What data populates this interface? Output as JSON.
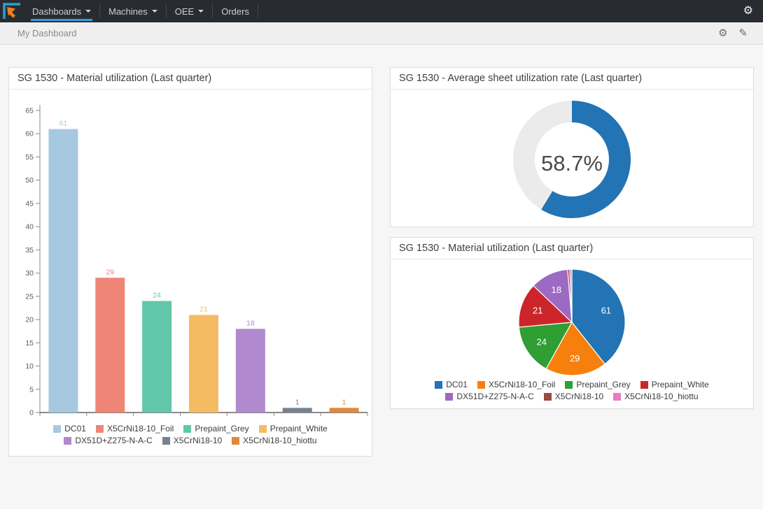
{
  "navbar": {
    "items": [
      {
        "label": "Dashboards",
        "caret": true,
        "active": true
      },
      {
        "label": "Machines",
        "caret": true,
        "active": false
      },
      {
        "label": "OEE",
        "caret": true,
        "active": false
      },
      {
        "label": "Orders",
        "caret": false,
        "active": false
      }
    ],
    "settings_icon": "⚙"
  },
  "toolbar": {
    "title": "My Dashboard",
    "gear_icon": "⚙",
    "edit_icon": "✎"
  },
  "colors": {
    "navbar_bg": "#282c30",
    "accent_blue": "#2d9fd8",
    "brand_orange": "#f07f1a",
    "page_bg": "#f6f6f6"
  },
  "chart_data": [
    {
      "id": "bar",
      "type": "bar",
      "title": "SG 1530 - Material utilization (Last quarter)",
      "categories": [
        "DC01",
        "X5CrNi18-10_Foil",
        "Prepaint_Grey",
        "Prepaint_White",
        "DX51D+Z275-N-A-C",
        "X5CrNi18-10",
        "X5CrNi18-10_hiottu"
      ],
      "values": [
        61,
        29,
        24,
        21,
        18,
        1,
        1
      ],
      "colors": [
        "#a6c8e0",
        "#ee8577",
        "#62c6ab",
        "#f5bb62",
        "#b089ce",
        "#76838f",
        "#e0883d"
      ],
      "ylim": [
        0,
        65
      ],
      "ytick_step": 5,
      "grid": false,
      "value_labels": true,
      "legend_position": "bottom"
    },
    {
      "id": "donut",
      "type": "donut",
      "title": "SG 1530 - Average sheet utilization rate (Last quarter)",
      "value_pct": 58.7,
      "center_label": "58.7%",
      "color": "#2274b5",
      "track_color": "#ebebeb"
    },
    {
      "id": "pie",
      "type": "pie",
      "title": "SG 1530 - Material utilization (Last quarter)",
      "categories": [
        "DC01",
        "X5CrNi18-10_Foil",
        "Prepaint_Grey",
        "Prepaint_White",
        "DX51D+Z275-N-A-C",
        "X5CrNi18-10",
        "X5CrNi18-10_hiottu"
      ],
      "values": [
        61,
        29,
        24,
        21,
        18,
        1,
        1
      ],
      "colors": [
        "#2274b5",
        "#f7800d",
        "#2f9e33",
        "#cc2529",
        "#9c6ac2",
        "#9b4b3f",
        "#e87bc6"
      ],
      "start_angle": "top",
      "direction": "clockwise",
      "value_labels": true,
      "legend_position": "bottom"
    }
  ]
}
